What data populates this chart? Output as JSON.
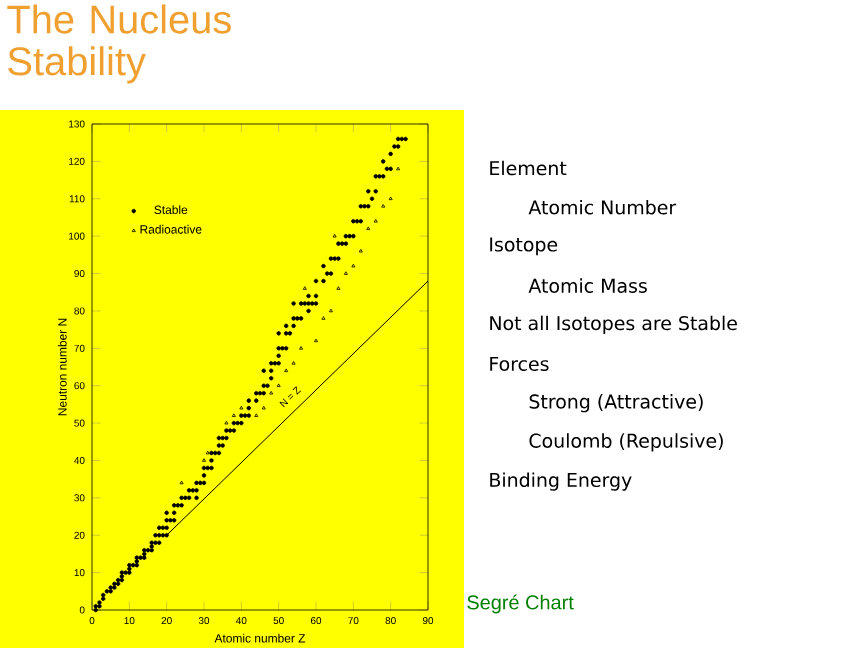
{
  "chart_data": {
    "type": "scatter",
    "title": "The Nucleus Stability",
    "xlabel": "Atomic number Z",
    "ylabel": "Neutron number N",
    "xlim": [
      0,
      90
    ],
    "ylim": [
      0,
      130
    ],
    "xticks": [
      0,
      10,
      20,
      30,
      40,
      50,
      60,
      70,
      80,
      90
    ],
    "yticks": [
      0,
      10,
      20,
      30,
      40,
      50,
      60,
      70,
      80,
      90,
      100,
      110,
      120,
      130
    ],
    "legend": "top left",
    "series": [
      {
        "name": "Stable",
        "marker": "circle",
        "color": "#000000",
        "x": [
          1,
          1,
          2,
          2,
          3,
          3,
          4,
          5,
          5,
          6,
          6,
          7,
          7,
          8,
          8,
          8,
          9,
          10,
          10,
          10,
          11,
          12,
          12,
          12,
          13,
          14,
          14,
          14,
          15,
          16,
          16,
          16,
          17,
          17,
          18,
          18,
          18,
          19,
          19,
          20,
          20,
          20,
          20,
          21,
          22,
          22,
          22,
          23,
          24,
          24,
          25,
          26,
          26,
          27,
          28,
          28,
          28,
          29,
          30,
          30,
          30,
          31,
          32,
          32,
          32,
          33,
          34,
          34,
          34,
          35,
          35,
          36,
          36,
          37,
          38,
          38,
          39,
          40,
          40,
          41,
          42,
          42,
          42,
          44,
          44,
          45,
          46,
          46,
          46,
          47,
          48,
          48,
          48,
          49,
          50,
          50,
          50,
          50,
          51,
          52,
          52,
          52,
          53,
          54,
          54,
          54,
          55,
          56,
          56,
          57,
          58,
          58,
          58,
          59,
          60,
          60,
          60,
          62,
          62,
          63,
          64,
          64,
          65,
          66,
          66,
          67,
          68,
          68,
          69,
          70,
          70,
          71,
          72,
          72,
          73,
          74,
          74,
          75,
          76,
          76,
          77,
          78,
          78,
          79,
          80,
          80,
          81,
          82,
          82,
          83,
          84
        ],
        "values": [
          0,
          1,
          1,
          2,
          3,
          4,
          5,
          5,
          6,
          6,
          7,
          7,
          8,
          8,
          9,
          10,
          10,
          10,
          11,
          12,
          12,
          12,
          13,
          14,
          14,
          14,
          15,
          16,
          16,
          16,
          17,
          18,
          18,
          20,
          18,
          20,
          22,
          20,
          22,
          20,
          22,
          24,
          26,
          24,
          24,
          26,
          28,
          28,
          28,
          30,
          30,
          30,
          32,
          32,
          30,
          32,
          34,
          34,
          34,
          36,
          38,
          38,
          38,
          40,
          42,
          42,
          42,
          44,
          46,
          44,
          46,
          46,
          48,
          48,
          48,
          50,
          50,
          50,
          52,
          52,
          52,
          54,
          56,
          56,
          58,
          58,
          58,
          60,
          64,
          60,
          62,
          64,
          66,
          66,
          66,
          68,
          70,
          74,
          70,
          70,
          74,
          76,
          74,
          76,
          78,
          82,
          78,
          78,
          82,
          82,
          80,
          82,
          84,
          82,
          82,
          84,
          88,
          88,
          92,
          90,
          90,
          94,
          94,
          94,
          98,
          98,
          98,
          100,
          100,
          100,
          104,
          104,
          104,
          108,
          108,
          108,
          112,
          110,
          112,
          116,
          116,
          116,
          120,
          118,
          118,
          122,
          124,
          124,
          126,
          126,
          126
        ]
      },
      {
        "name": "Radioactive",
        "marker": "triangle",
        "color": "#000000",
        "x": [
          24,
          30,
          31,
          36,
          38,
          40,
          44,
          46,
          48,
          50,
          52,
          54,
          56,
          57,
          60,
          62,
          64,
          65,
          66,
          68,
          70,
          72,
          74,
          76,
          78,
          80,
          82
        ],
        "values": [
          34,
          40,
          42,
          50,
          52,
          54,
          52,
          54,
          58,
          60,
          64,
          66,
          70,
          86,
          72,
          78,
          80,
          100,
          86,
          90,
          92,
          96,
          102,
          104,
          108,
          110,
          118
        ]
      },
      {
        "type": "line",
        "color": "#000000",
        "x": [
          20,
          90
        ],
        "values": [
          20,
          88
        ]
      }
    ],
    "annotations": [
      {
        "text": "N = Z",
        "x": 55,
        "y": 55
      },
      "Element",
      "Atomic Number",
      "Isotope",
      "Atomic Mass",
      "Not all Isotopes are Stable",
      "Forces",
      "Strong (Attractive)",
      "Coulomb (Repulsive)",
      "Binding Energy",
      "Segré Chart"
    ]
  }
}
